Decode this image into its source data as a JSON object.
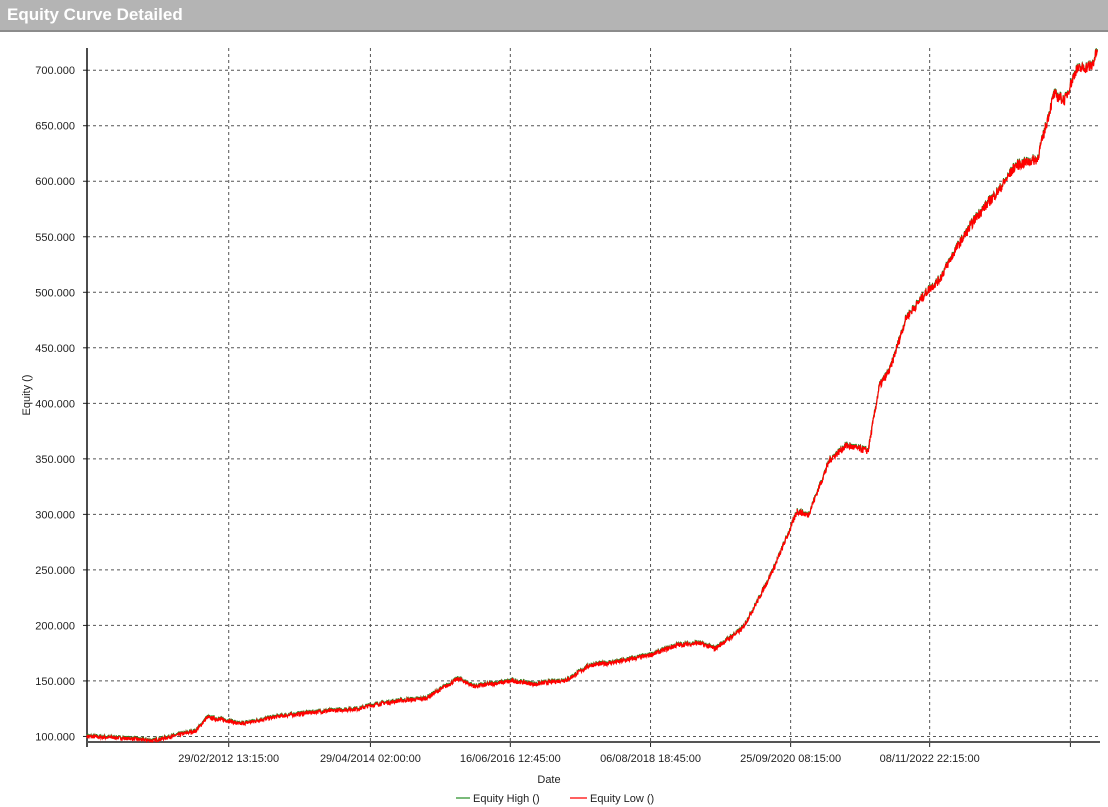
{
  "window": {
    "title": "Equity Curve Detailed"
  },
  "chart_data": {
    "type": "line",
    "title": "",
    "xlabel": "Date",
    "ylabel": "Equity ()",
    "xlim": [
      "2010-01-01",
      "2025-06-15"
    ],
    "ylim": [
      95,
      720
    ],
    "grid": true,
    "legend_position": "bottom",
    "y_ticks": [
      100,
      150,
      200,
      250,
      300,
      350,
      400,
      450,
      500,
      550,
      600,
      650,
      700
    ],
    "y_tick_labels": [
      "100.000",
      "150.000",
      "200.000",
      "250.000",
      "300.000",
      "350.000",
      "400.000",
      "450.000",
      "500.000",
      "550.000",
      "600.000",
      "650.000",
      "700.000"
    ],
    "x_ticks": [
      "2012-02-29T13:15",
      "2014-04-29T02:00",
      "2016-06-16T12:45",
      "2018-08-06T18:45",
      "2020-09-25T08:15",
      "2022-11-08T22:15",
      "2025-01-01T00:00"
    ],
    "x_tick_labels": [
      "29/02/2012 13:15:00",
      "29/04/2014 02:00:00",
      "16/06/2016 12:45:00",
      "06/08/2018 18:45:00",
      "25/09/2020 08:15:00",
      "08/11/2022 22:15:00",
      ""
    ],
    "series": [
      {
        "name": "Equity High ()",
        "color": "#228b22"
      },
      {
        "name": "Equity Low ()",
        "color": "#ff0000",
        "x": [
          "2010-01",
          "2010-09",
          "2011-01",
          "2011-09",
          "2011-11",
          "2012-03",
          "2012-05",
          "2012-12",
          "2013-07",
          "2014-03",
          "2014-05",
          "2014-10",
          "2015-03",
          "2015-09",
          "2015-12",
          "2016-07",
          "2016-11",
          "2017-05",
          "2017-09",
          "2018-02",
          "2018-08",
          "2019-01",
          "2019-05",
          "2019-08",
          "2020-01",
          "2020-04",
          "2020-07",
          "2020-10",
          "2020-11",
          "2021-01",
          "2021-05",
          "2021-08",
          "2021-12",
          "2022-02",
          "2022-04",
          "2022-07",
          "2022-11",
          "2023-01",
          "2023-04",
          "2023-08",
          "2023-12",
          "2024-03",
          "2024-07",
          "2024-10",
          "2024-12",
          "2025-02",
          "2025-05",
          "2025-06"
        ],
        "values": [
          100,
          98,
          96,
          105,
          117,
          114,
          111,
          118,
          122,
          125,
          128,
          132,
          134,
          152,
          145,
          150,
          147,
          151,
          164,
          167,
          173,
          182,
          184,
          179,
          197,
          224,
          254,
          290,
          303,
          299,
          349,
          362,
          357,
          415,
          430,
          477,
          502,
          511,
          538,
          569,
          592,
          614,
          620,
          678,
          673,
          700,
          704,
          718
        ]
      }
    ]
  }
}
